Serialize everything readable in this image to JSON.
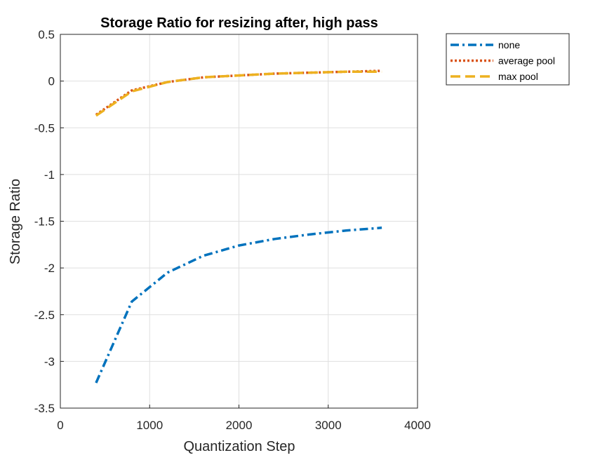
{
  "chart_data": {
    "type": "line",
    "title": "Storage Ratio for resizing after, high pass",
    "xlabel": "Quantization Step",
    "ylabel": "Storage Ratio",
    "xlim": [
      0,
      4000
    ],
    "ylim": [
      -3.5,
      0.5
    ],
    "x_ticks": [
      0,
      1000,
      2000,
      3000,
      4000
    ],
    "x_tick_labels": [
      "0",
      "1000",
      "2000",
      "3000",
      "4000"
    ],
    "y_ticks": [
      0.5,
      0,
      -0.5,
      -1,
      -1.5,
      -2,
      -2.5,
      -3,
      -3.5
    ],
    "y_tick_labels": [
      "0.5",
      "0",
      "-0.5",
      "-1",
      "-1.5",
      "-2",
      "-2.5",
      "-3",
      "-3.5"
    ],
    "grid": true,
    "legend_position": "outside-top-right",
    "x": [
      400,
      800,
      1200,
      1600,
      2000,
      2400,
      2800,
      3200,
      3600
    ],
    "series": [
      {
        "name": "none",
        "color": "#0072BD",
        "line_style": "dash-dot",
        "values": [
          -3.23,
          -2.36,
          -2.05,
          -1.87,
          -1.76,
          -1.69,
          -1.64,
          -1.6,
          -1.57
        ]
      },
      {
        "name": "average pool",
        "color": "#D95319",
        "line_style": "dotted",
        "values": [
          -0.36,
          -0.1,
          -0.01,
          0.04,
          0.06,
          0.08,
          0.09,
          0.1,
          0.11
        ]
      },
      {
        "name": "max pool",
        "color": "#EDB120",
        "line_style": "dashed",
        "values": [
          -0.37,
          -0.11,
          -0.01,
          0.04,
          0.06,
          0.08,
          0.09,
          0.1,
          0.1
        ]
      }
    ]
  }
}
